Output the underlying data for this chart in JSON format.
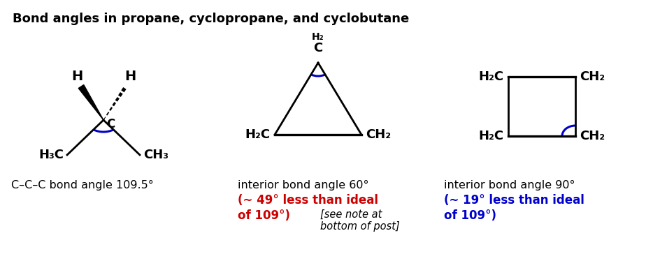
{
  "title": "Bond angles in propane, cyclopropane, and cyclobutane",
  "title_fontsize": 13,
  "bg_color": "#ffffff",
  "black": "#000000",
  "red": "#cc0000",
  "blue": "#0000cc",
  "propane_label": "C–C–C bond angle 109.5°",
  "cyclopropane_label": "interior bond angle 60°",
  "cyclobutane_label": "interior bond angle 90°",
  "cyclopropane_note1": "(∼ 49° less than ideal",
  "cyclopropane_note2": "of 109°)",
  "cyclopropane_italic": "[see note at\nbottom of post]",
  "cyclobutane_note1": "(∼ 19° less than ideal",
  "cyclobutane_note2": "of 109°)",
  "fig_width": 9.24,
  "fig_height": 3.74
}
